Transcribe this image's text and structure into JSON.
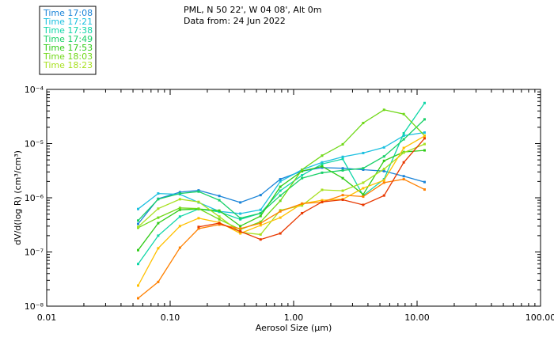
{
  "chart_data": {
    "type": "line",
    "title": "PML, N 50 22', W 04 08', Alt 0m",
    "subtitle": "Data from: 24 Jun 2022",
    "xlabel": "Aerosol Size (µm)",
    "ylabel": "dV/d(log R) (cm³/cm³)",
    "xscale": "log",
    "yscale": "log",
    "xlim": [
      0.01,
      100
    ],
    "ylim": [
      1e-08,
      0.0001
    ],
    "grid": false,
    "legend_position": "top-left",
    "x_ticks": [
      {
        "value": 0.01,
        "label": "0.01"
      },
      {
        "value": 0.1,
        "label": "0.10"
      },
      {
        "value": 1,
        "label": "1.00"
      },
      {
        "value": 10,
        "label": "10.00"
      },
      {
        "value": 100,
        "label": "100.00"
      }
    ],
    "y_ticks": [
      {
        "value": 1e-08,
        "label": "10⁻⁸"
      },
      {
        "value": 1e-07,
        "label": "10⁻⁷"
      },
      {
        "value": 1e-06,
        "label": "10⁻⁶"
      },
      {
        "value": 1e-05,
        "label": "10⁻⁵"
      },
      {
        "value": 0.0001,
        "label": "10⁻⁴"
      }
    ],
    "x": [
      0.055,
      0.08,
      0.12,
      0.17,
      0.25,
      0.37,
      0.54,
      0.78,
      1.17,
      1.7,
      2.5,
      3.66,
      5.4,
      7.8,
      11.5
    ],
    "series": [
      {
        "name": "Time 17:08",
        "color": "#1a84d8",
        "values": [
          3.3e-07,
          9.6e-07,
          1.27e-06,
          1.37e-06,
          1.08e-06,
          8.2e-07,
          1.12e-06,
          2.2e-06,
          3.1e-06,
          3.6e-06,
          3.5e-06,
          3.3e-06,
          3.1e-06,
          2.5e-06,
          1.95e-06
        ]
      },
      {
        "name": "Time 17:21",
        "color": "#1cc0e0",
        "values": [
          6.2e-07,
          1.2e-06,
          1.16e-06,
          8.2e-07,
          5.6e-07,
          5.1e-07,
          6e-07,
          2e-06,
          3.3e-06,
          4.5e-06,
          5.7e-06,
          6.7e-06,
          8.5e-06,
          1.4e-05,
          1.6e-05
        ]
      },
      {
        "name": "Time 17:38",
        "color": "#10d6a8",
        "values": [
          6e-08,
          2e-07,
          4.5e-07,
          6.2e-07,
          5.5e-07,
          4e-07,
          5.2e-07,
          1.35e-06,
          2.6e-06,
          4.2e-06,
          5.2e-06,
          1.1e-06,
          2.2e-06,
          1.55e-05,
          5.6e-05
        ]
      },
      {
        "name": "Time 17:49",
        "color": "#18d068",
        "values": [
          3.8e-07,
          9.4e-07,
          1.2e-06,
          1.3e-06,
          9e-07,
          4.2e-07,
          5.2e-07,
          1.1e-06,
          2.3e-06,
          2.9e-06,
          3.2e-06,
          3.5e-06,
          5.8e-06,
          1.2e-05,
          2.8e-05
        ]
      },
      {
        "name": "Time 17:53",
        "color": "#30cc18",
        "values": [
          1.08e-07,
          3.4e-07,
          6e-07,
          6.2e-07,
          5.8e-07,
          3e-07,
          4.6e-07,
          1.6e-06,
          3.1e-06,
          3.8e-06,
          2.3e-06,
          1.15e-06,
          4.8e-06,
          7e-06,
          7.5e-06
        ]
      },
      {
        "name": "Time 18:03",
        "color": "#70d818",
        "values": [
          2.8e-07,
          4.3e-07,
          6.5e-07,
          6.3e-07,
          4e-07,
          2.6e-07,
          3.6e-07,
          8.8e-07,
          3.3e-06,
          6e-06,
          9.7e-06,
          2.4e-05,
          4.2e-05,
          3.5e-05,
          1.4e-05
        ]
      },
      {
        "name": "Time 18:23",
        "color": "#a8e020",
        "values": [
          2.9e-07,
          6.3e-07,
          9.4e-07,
          8.4e-07,
          4.5e-07,
          2.3e-07,
          2.1e-07,
          5.9e-07,
          7.2e-07,
          1.4e-06,
          1.35e-06,
          1.9e-06,
          3.4e-06,
          6.8e-06,
          9.8e-06
        ]
      },
      {
        "name": "",
        "color": "#ffc000",
        "values": [
          2.4e-08,
          1.17e-07,
          3e-07,
          4.2e-07,
          3.5e-07,
          2.2e-07,
          3.1e-07,
          4.3e-07,
          7.8e-07,
          9e-07,
          9.4e-07,
          1.5e-06,
          2.1e-06,
          8.3e-06,
          1.38e-05
        ]
      },
      {
        "name": "",
        "color": "#ff8000",
        "values": [
          1.4e-08,
          2.8e-08,
          1.2e-07,
          2.7e-07,
          3.2e-07,
          2.7e-07,
          3.4e-07,
          5.6e-07,
          7.8e-07,
          8.3e-07,
          1.12e-06,
          1.05e-06,
          1.9e-06,
          2.2e-06,
          1.42e-06
        ]
      },
      {
        "name": "",
        "color": "#e83800",
        "values": [
          null,
          null,
          null,
          2.9e-07,
          3.4e-07,
          2.4e-07,
          1.7e-07,
          2.2e-07,
          5.2e-07,
          8.4e-07,
          9.2e-07,
          7.4e-07,
          1.1e-06,
          4.5e-06,
          1.25e-05
        ]
      }
    ]
  }
}
